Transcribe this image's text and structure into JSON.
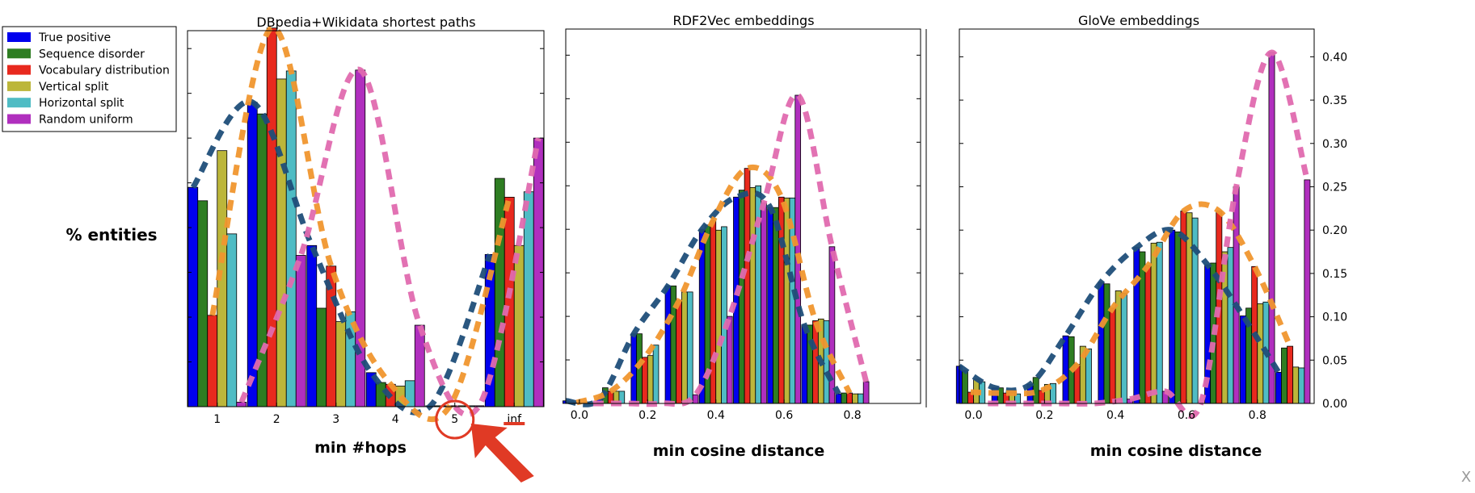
{
  "legend": {
    "entries": [
      {
        "label": "True positive",
        "color": "#0000ee"
      },
      {
        "label": "Sequence disorder",
        "color": "#2e7d22"
      },
      {
        "label": "Vocabulary distribution",
        "color": "#e8291e"
      },
      {
        "label": "Vertical split",
        "color": "#bcb63a"
      },
      {
        "label": "Horizontal split",
        "color": "#4fbcc4"
      },
      {
        "label": "Random uniform",
        "color": "#b02fbe"
      }
    ]
  },
  "ylabel": "% entities",
  "curve_colors": {
    "true_positive": "#1f4e79",
    "vocabulary": "#f0962e",
    "random": "#e06aaf"
  },
  "highlight_color": "#e03a25",
  "close_mark": "X",
  "chart_data": [
    {
      "type": "bar",
      "title": "DBpedia+Wikidata shortest paths",
      "xlabel": "min #hops",
      "ylabel": "% entities",
      "categories": [
        "1",
        "2",
        "3",
        "4",
        "5",
        "inf"
      ],
      "ylim": [
        0,
        0.42
      ],
      "series": [
        {
          "name": "True positive",
          "values": [
            0.245,
            0.34,
            0.18,
            0.038,
            0.001,
            0.17
          ]
        },
        {
          "name": "Sequence disorder",
          "values": [
            0.23,
            0.327,
            0.11,
            0.027,
            0.001,
            0.255
          ]
        },
        {
          "name": "Vocabulary distribution",
          "values": [
            0.102,
            0.423,
            0.157,
            0.025,
            0.001,
            0.234
          ]
        },
        {
          "name": "Vertical split",
          "values": [
            0.286,
            0.366,
            0.095,
            0.023,
            0.001,
            0.18
          ]
        },
        {
          "name": "Horizontal split",
          "values": [
            0.193,
            0.375,
            0.106,
            0.029,
            0.001,
            0.24
          ]
        },
        {
          "name": "Random uniform",
          "values": [
            0.005,
            0.169,
            0.376,
            0.091,
            0.001,
            0.3
          ]
        }
      ],
      "annotation": {
        "circled_category": "5",
        "underlined_category": "inf"
      }
    },
    {
      "type": "bar",
      "title": "RDF2Vec embeddings",
      "xlabel": "min cosine distance",
      "xticks": [
        0.0,
        0.2,
        0.4,
        0.6,
        0.8
      ],
      "xlim": [
        -0.04,
        1.0
      ],
      "ylim": [
        0,
        0.43
      ],
      "bin_centers": [
        0.0,
        0.1,
        0.2,
        0.3,
        0.4,
        0.5,
        0.6,
        0.7,
        0.8
      ],
      "series": [
        {
          "name": "True positive",
          "values": [
            0.003,
            0.005,
            0.08,
            0.135,
            0.2,
            0.237,
            0.225,
            0.09,
            0.011
          ]
        },
        {
          "name": "Sequence disorder",
          "values": [
            0.002,
            0.018,
            0.08,
            0.135,
            0.205,
            0.245,
            0.225,
            0.09,
            0.012
          ]
        },
        {
          "name": "Vocabulary distribution",
          "values": [
            0.001,
            0.014,
            0.053,
            0.118,
            0.21,
            0.27,
            0.237,
            0.095,
            0.012
          ]
        },
        {
          "name": "Vertical split",
          "values": [
            0.0,
            0.014,
            0.055,
            0.128,
            0.199,
            0.248,
            0.236,
            0.097,
            0.011
          ]
        },
        {
          "name": "Horizontal split",
          "values": [
            0.001,
            0.014,
            0.067,
            0.128,
            0.203,
            0.25,
            0.236,
            0.095,
            0.011
          ]
        },
        {
          "name": "Random uniform",
          "values": [
            0.0,
            0.0,
            0.0,
            0.01,
            0.1,
            0.23,
            0.354,
            0.18,
            0.025
          ]
        }
      ]
    },
    {
      "type": "bar",
      "title": "GloVe embeddings",
      "xlabel": "min cosine distance",
      "xticks": [
        0.0,
        0.2,
        0.4,
        0.6,
        0.8
      ],
      "yticks": [
        "0.00",
        "0.05",
        "0.10",
        "0.15",
        "0.20",
        "0.25",
        "0.30",
        "0.35",
        "0.40"
      ],
      "xlim": [
        -0.04,
        0.96
      ],
      "ylim": [
        0,
        0.432
      ],
      "bin_centers": [
        0.0,
        0.1,
        0.2,
        0.3,
        0.4,
        0.5,
        0.6,
        0.7,
        0.8,
        0.9
      ],
      "series": [
        {
          "name": "True positive",
          "values": [
            0.043,
            0.018,
            0.022,
            0.078,
            0.14,
            0.18,
            0.2,
            0.16,
            0.101,
            0.036
          ]
        },
        {
          "name": "Sequence disorder",
          "values": [
            0.038,
            0.018,
            0.03,
            0.077,
            0.138,
            0.175,
            0.198,
            0.162,
            0.11,
            0.064
          ]
        },
        {
          "name": "Vocabulary distribution",
          "values": [
            0.013,
            0.012,
            0.015,
            0.045,
            0.11,
            0.159,
            0.222,
            0.222,
            0.158,
            0.066
          ]
        },
        {
          "name": "Vertical split",
          "values": [
            0.028,
            0.013,
            0.022,
            0.066,
            0.13,
            0.185,
            0.22,
            0.175,
            0.115,
            0.042
          ]
        },
        {
          "name": "Horizontal split",
          "values": [
            0.025,
            0.011,
            0.023,
            0.063,
            0.127,
            0.186,
            0.214,
            0.18,
            0.117,
            0.041
          ]
        },
        {
          "name": "Random uniform",
          "values": [
            0.0,
            0.0,
            0.0,
            0.0,
            0.005,
            0.014,
            0.0,
            0.25,
            0.405,
            0.258
          ]
        }
      ]
    }
  ]
}
